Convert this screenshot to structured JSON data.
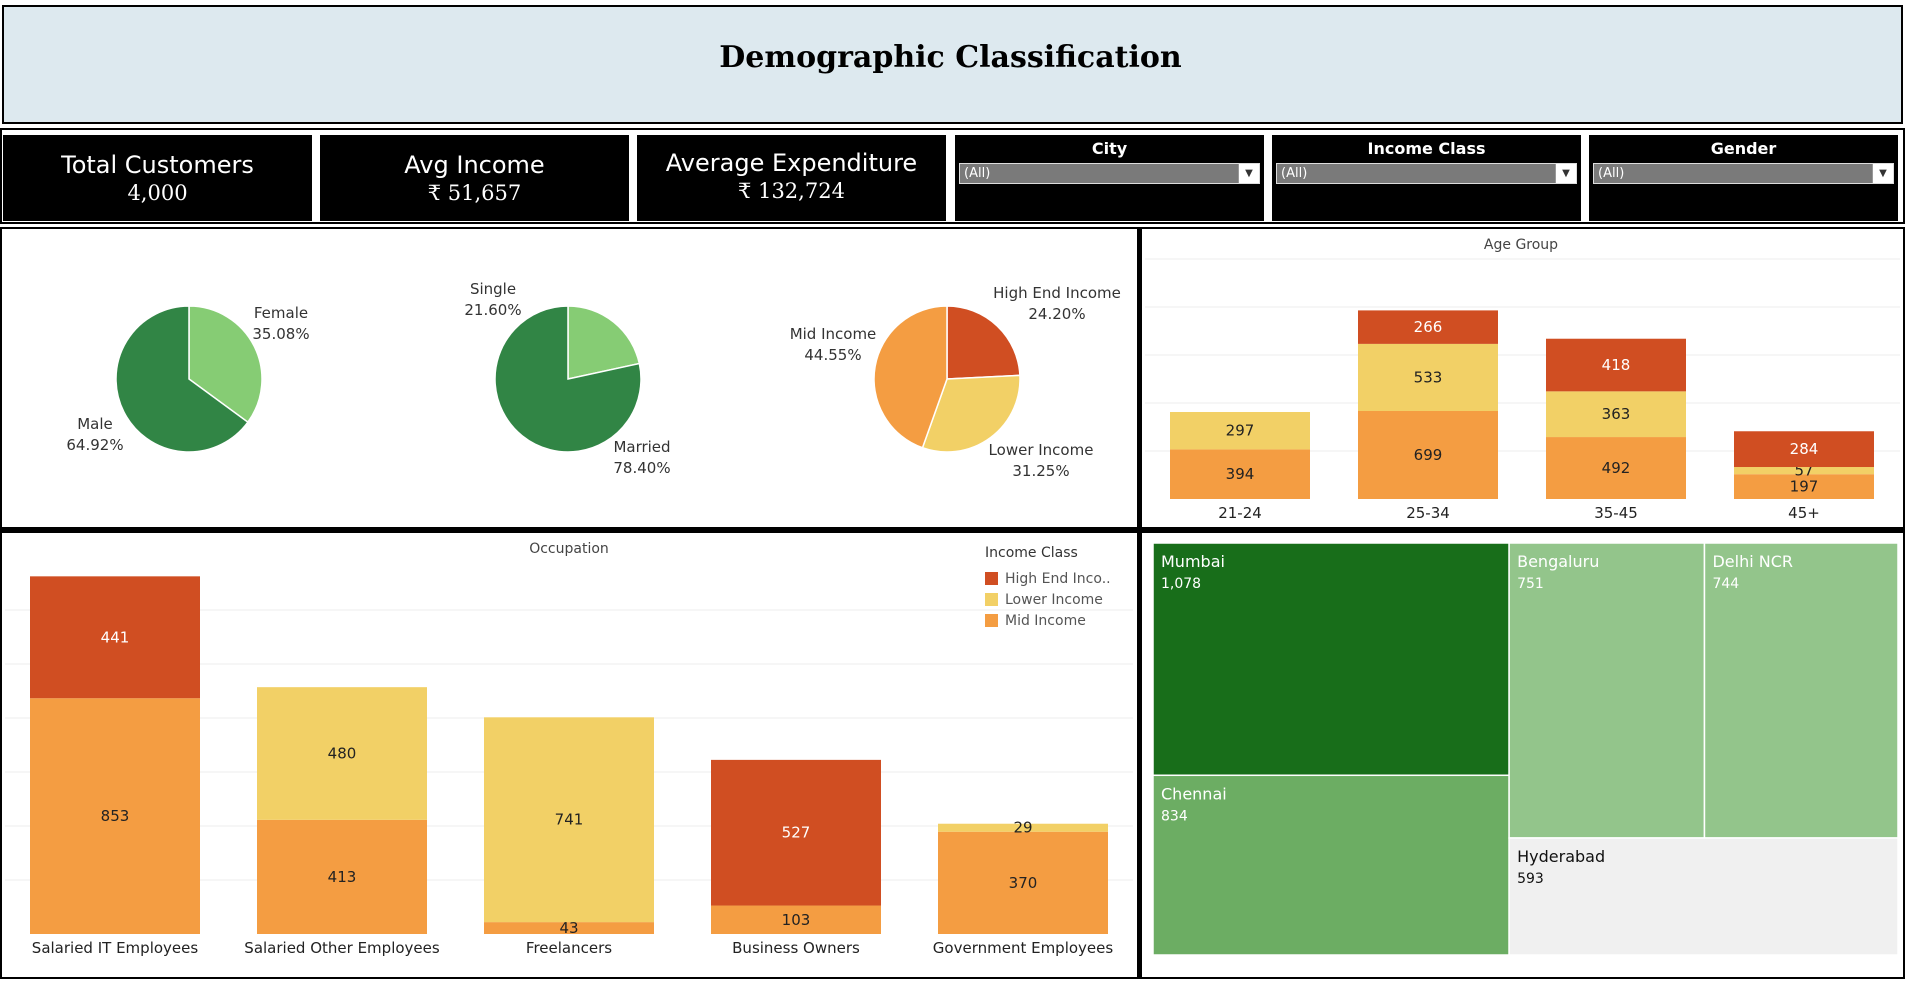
{
  "title": "Demographic Classification",
  "kpis": {
    "total_customers": {
      "label": "Total Customers",
      "value": "4,000"
    },
    "avg_income": {
      "label": "Avg Income",
      "value": "₹ 51,657"
    },
    "avg_expenditure": {
      "label": "Average Expenditure",
      "value": "₹ 132,724"
    }
  },
  "filters": {
    "city": {
      "label": "City",
      "value": "(All)"
    },
    "income_class": {
      "label": "Income Class",
      "value": "(All)"
    },
    "gender": {
      "label": "Gender",
      "value": "(All)"
    }
  },
  "colors": {
    "high_end": "#d04e22",
    "lower": "#f2d066",
    "mid": "#f49d42",
    "pie_dark": "#318545",
    "pie_light": "#86cc74"
  },
  "chart_data": [
    {
      "type": "pie",
      "slices": [
        {
          "label": "Female",
          "value": 35.08,
          "pct_label": "35.08%"
        },
        {
          "label": "Male",
          "value": 64.92,
          "pct_label": "64.92%"
        }
      ]
    },
    {
      "type": "pie",
      "slices": [
        {
          "label": "Single",
          "value": 21.6,
          "pct_label": "21.60%"
        },
        {
          "label": "Married",
          "value": 78.4,
          "pct_label": "78.40%"
        }
      ]
    },
    {
      "type": "pie",
      "slices": [
        {
          "label": "High End Income",
          "value": 24.2,
          "pct_label": "24.20%"
        },
        {
          "label": "Lower Income",
          "value": 31.25,
          "pct_label": "31.25%"
        },
        {
          "label": "Mid Income",
          "value": 44.55,
          "pct_label": "44.55%"
        }
      ]
    },
    {
      "type": "bar",
      "stacked": true,
      "title": "Age Group",
      "categories": [
        "21-24",
        "25-34",
        "35-45",
        "45+"
      ],
      "series": [
        {
          "name": "Mid Income",
          "values": [
            394,
            699,
            492,
            197
          ]
        },
        {
          "name": "Lower Income",
          "values": [
            297,
            533,
            363,
            57
          ]
        },
        {
          "name": "High End Income",
          "values": [
            0,
            266,
            418,
            284
          ]
        }
      ]
    },
    {
      "type": "bar",
      "stacked": true,
      "title": "Occupation",
      "legend_title": "Income Class",
      "legend_labels": [
        "High End Inco..",
        "Lower Income",
        "Mid Income"
      ],
      "legend_position": "top-right",
      "categories": [
        "Salaried IT Employees",
        "Salaried Other Employees",
        "Freelancers",
        "Business Owners",
        "Government Employees"
      ],
      "series": [
        {
          "name": "Mid Income",
          "values": [
            853,
            413,
            43,
            103,
            370
          ]
        },
        {
          "name": "Lower Income",
          "values": [
            0,
            480,
            741,
            0,
            29
          ]
        },
        {
          "name": "High End Income",
          "values": [
            441,
            0,
            0,
            527,
            0
          ]
        }
      ]
    },
    {
      "type": "treemap",
      "items": [
        {
          "label": "Mumbai",
          "value": 1078,
          "value_label": "1,078"
        },
        {
          "label": "Chennai",
          "value": 834,
          "value_label": "834"
        },
        {
          "label": "Bengaluru",
          "value": 751,
          "value_label": "751"
        },
        {
          "label": "Delhi NCR",
          "value": 744,
          "value_label": "744"
        },
        {
          "label": "Hyderabad",
          "value": 593,
          "value_label": "593"
        }
      ]
    }
  ]
}
